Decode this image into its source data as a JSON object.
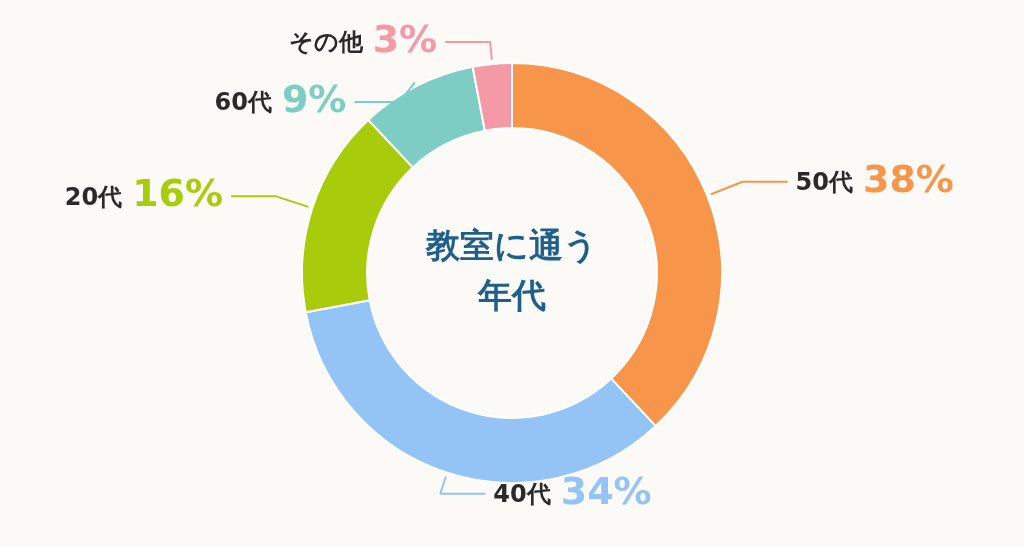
{
  "chart_data": {
    "type": "donut",
    "title": "教室に通う年代",
    "categories": [
      "50代",
      "40代",
      "20代",
      "60代",
      "その他"
    ],
    "values": [
      38,
      34,
      16,
      9,
      3
    ],
    "colors": [
      "#f7954a",
      "#94c4f5",
      "#a8cc0c",
      "#7ecdc4",
      "#f49aa6"
    ],
    "value_labels": [
      "38%",
      "34%",
      "16%",
      "9%",
      "3%"
    ],
    "legend": false
  }
}
